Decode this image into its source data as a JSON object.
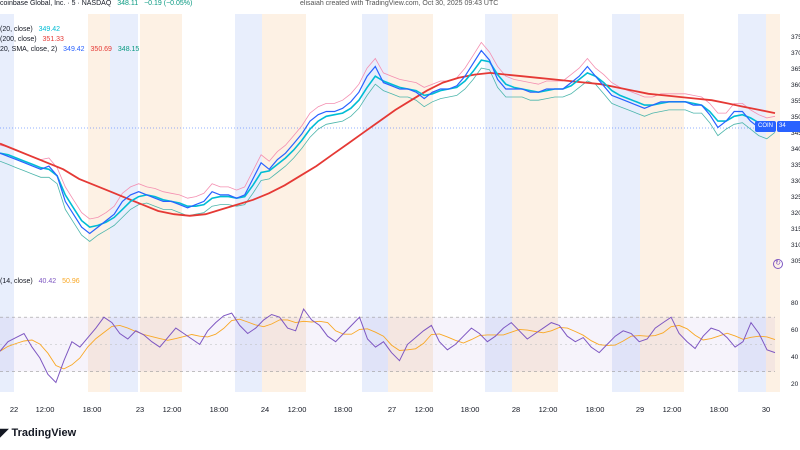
{
  "header": {
    "line1": "coinbase Global, Inc. · 5 · NASDAQ",
    "line1_value": "348.11",
    "line1_change": "−0.19 (−0.05%)",
    "credit": "elisaiah created with TradingView.com, Oct 30, 2025 09:43 UTC",
    "line2": "(20, close)",
    "line2_value": "349.42",
    "line3": "(200, close)",
    "line3_value": "351.33",
    "line4": "20, SMA, close, 2)",
    "line4_values": [
      "349.42",
      "350.69",
      "348.15"
    ],
    "rsi_label": "(14, close)",
    "rsi_values": [
      "40.42",
      "50.96"
    ]
  },
  "price_tag": "34",
  "symbol_tag": "COIN",
  "brand": "TradingView",
  "colors": {
    "price": "#2962ff",
    "ema20": "#00bcd4",
    "ema200": "#e53935",
    "bb_upper": "#f48fb1",
    "bb_lower": "#4db6ac",
    "rsi": "#7e57c2",
    "rsi_ma": "#f9a825",
    "shade_blue": "#e8eefc",
    "shade_orange": "#fdf1e4"
  },
  "chart_data": {
    "type": "line",
    "title": "",
    "xlabel": "",
    "ylabel": "",
    "x_ticks": [
      "22",
      "12:00",
      "18:00",
      "23",
      "12:00",
      "18:00",
      "24",
      "12:00",
      "18:00",
      "27",
      "12:00",
      "18:00",
      "28",
      "12:00",
      "18:00",
      "29",
      "12:00",
      "18:00",
      "30"
    ],
    "price_axis_ticks": [
      "375",
      "370",
      "365",
      "360",
      "355",
      "350",
      "345",
      "340",
      "335",
      "330",
      "325",
      "320",
      "315",
      "310",
      "305"
    ],
    "rsi_axis_ticks": [
      "80",
      "60",
      "40",
      "20"
    ],
    "ylim": [
      302,
      378
    ],
    "rsi_ylim": [
      15,
      90
    ],
    "series": [
      {
        "name": "COIN",
        "values": [
          339,
          338,
          337,
          336,
          335,
          334,
          335,
          332,
          324,
          320,
          316,
          314,
          316,
          318,
          320,
          324,
          326,
          327,
          326,
          325,
          324,
          324,
          323,
          322,
          323,
          324,
          327,
          326,
          326,
          325,
          326,
          331,
          336,
          334,
          337,
          339,
          342,
          345,
          349,
          351,
          352,
          352,
          353,
          355,
          358,
          363,
          366,
          361,
          360,
          359,
          359,
          358,
          356,
          358,
          359,
          359,
          360,
          363,
          367,
          371,
          368,
          362,
          359,
          359,
          359,
          358,
          358,
          359,
          359,
          359,
          361,
          363,
          366,
          363,
          360,
          357,
          356,
          355,
          354,
          353,
          354,
          355,
          355,
          355,
          355,
          354,
          354,
          351,
          347,
          349,
          352,
          352,
          349,
          347,
          346,
          348
        ]
      },
      {
        "name": "EMA 20",
        "values": [
          339,
          338.5,
          337.5,
          336.5,
          335.5,
          334.5,
          334,
          332,
          326,
          322,
          318,
          316,
          316.5,
          317.5,
          319,
          321.5,
          324,
          325.5,
          326,
          325.5,
          324.5,
          324,
          323.5,
          322.5,
          322.5,
          323,
          325,
          325.5,
          325.5,
          325,
          325.5,
          329,
          333,
          333.5,
          335.5,
          337.5,
          340,
          343,
          346.5,
          349,
          350.5,
          351,
          351.5,
          353,
          355.5,
          359.5,
          363,
          361.5,
          360.5,
          359.5,
          359,
          358.5,
          357,
          357.5,
          358.5,
          359,
          359.5,
          361.5,
          364.5,
          368,
          367.5,
          363.5,
          360.5,
          359.5,
          359,
          358.5,
          358,
          358.5,
          359,
          359,
          360,
          362,
          364,
          363,
          361,
          358.5,
          357,
          356,
          355,
          354,
          354,
          354.5,
          355,
          355,
          355,
          354.5,
          354,
          352,
          349,
          349,
          350.5,
          351,
          350,
          348.5,
          347.5,
          348
        ]
      }
    ],
    "ema200": [
      342,
      340,
      338,
      336,
      334,
      331,
      329,
      327,
      325,
      323,
      321,
      320,
      319.5,
      320,
      321.5,
      323,
      324.5,
      326.5,
      329,
      332,
      335,
      338.5,
      342,
      345.5,
      349,
      352.5,
      355.5,
      358.5,
      361,
      362.5,
      363.5,
      364,
      363.5,
      363,
      362.5,
      362,
      361.5,
      361,
      360.5,
      359.5,
      358.5,
      357.5,
      357,
      356.5,
      356,
      355.5,
      354.5,
      353.5,
      352.5,
      351.5
    ],
    "rsi": [
      45,
      52,
      55,
      58,
      48,
      40,
      28,
      22,
      38,
      52,
      48,
      55,
      62,
      70,
      66,
      58,
      54,
      60,
      57,
      52,
      48,
      55,
      62,
      58,
      54,
      50,
      60,
      66,
      71,
      73,
      64,
      58,
      62,
      68,
      72,
      70,
      62,
      60,
      76,
      68,
      64,
      56,
      52,
      58,
      64,
      70,
      54,
      48,
      52,
      44,
      38,
      50,
      55,
      60,
      64,
      52,
      46,
      50,
      56,
      62,
      58,
      52,
      56,
      62,
      66,
      60,
      54,
      58,
      62,
      66,
      64,
      56,
      52,
      55,
      48,
      44,
      50,
      56,
      60,
      58,
      52,
      54,
      62,
      66,
      70,
      58,
      52,
      47,
      56,
      62,
      60,
      55,
      48,
      52,
      66,
      58,
      46,
      44
    ]
  }
}
